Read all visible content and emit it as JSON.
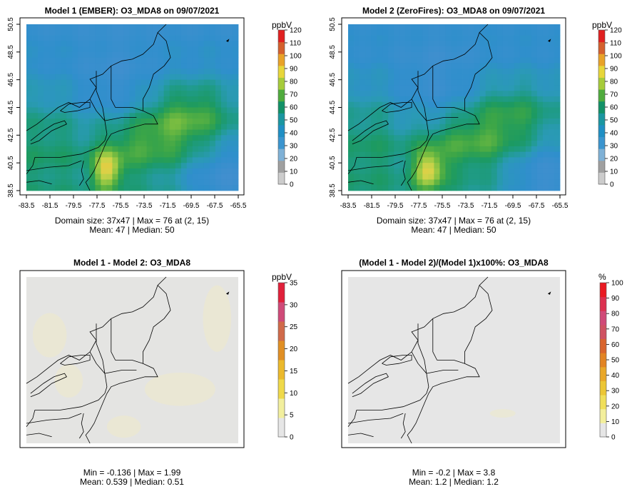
{
  "colors": {
    "land_line": "#000000",
    "frame": "#000000",
    "diff_bg": "#e4e4e4",
    "pct_bg": "#e6e6e6",
    "diff_tint": "#ece9d6"
  },
  "panels": [
    {
      "title": "Model 1 (EMBER): O3_MDA8 on 09/07/2021",
      "unit": "ppbV",
      "x_ticks": [
        "-83.5",
        "-81.5",
        "-79.5",
        "-77.5",
        "-75.5",
        "-73.5",
        "-71.5",
        "-69.5",
        "-67.5",
        "-65.5"
      ],
      "y_ticks": [
        "38.5",
        "40.5",
        "42.5",
        "44.5",
        "46.5",
        "48.5",
        "50.5"
      ],
      "stats_line1": "Domain size: 37x47 | Max = 76 at (2, 15)",
      "stats_line2": "Mean: 47 |  Median: 50"
    },
    {
      "title": "Model 2 (ZeroFires): O3_MDA8 on 09/07/2021",
      "unit": "ppbV",
      "x_ticks": [
        "-83.5",
        "-81.5",
        "-79.5",
        "-77.5",
        "-75.5",
        "-73.5",
        "-71.5",
        "-69.5",
        "-67.5",
        "-65.5"
      ],
      "y_ticks": [
        "38.5",
        "40.5",
        "42.5",
        "44.5",
        "46.5",
        "48.5",
        "50.5"
      ],
      "stats_line1": "Domain size: 37x47 | Max = 76 at (2, 15)",
      "stats_line2": "Mean: 47 |  Median: 50"
    },
    {
      "title": "Model 1 - Model 2: O3_MDA8",
      "unit": "ppbV",
      "stats_line1": "Min = -0.136 | Max = 1.99",
      "stats_line2": "Mean: 0.539 |  Median: 0.51"
    },
    {
      "title": "(Model 1 - Model 2)/(Model 1)x100%: O3_MDA8",
      "unit": "%",
      "stats_line1": "Min = -0.2 | Max = 3.8",
      "stats_line2": "Mean: 1.2 |  Median: 1.2"
    }
  ],
  "colorbars": [
    {
      "name": "ozone-colorbar-1",
      "labels": [
        "120",
        "110",
        "100",
        "90",
        "80",
        "70",
        "60",
        "50",
        "40",
        "30",
        "20",
        "10",
        "0"
      ],
      "colors": [
        "#cccccc",
        "#a0a0a0",
        "#7fb1d6",
        "#3b95cf",
        "#1f8fc4",
        "#1a96a0",
        "#129167",
        "#4fab3d",
        "#a6cb3a",
        "#e7d63a",
        "#e8a228",
        "#d4602d",
        "#e02020"
      ]
    },
    {
      "name": "ozone-colorbar-2",
      "labels": [
        "120",
        "110",
        "100",
        "90",
        "80",
        "70",
        "60",
        "50",
        "40",
        "30",
        "20",
        "10",
        "0"
      ],
      "colors": [
        "#cccccc",
        "#a0a0a0",
        "#7fb1d6",
        "#3b95cf",
        "#1f8fc4",
        "#1a96a0",
        "#129167",
        "#4fab3d",
        "#a6cb3a",
        "#e7d63a",
        "#e8a228",
        "#d4602d",
        "#e02020"
      ]
    },
    {
      "name": "diff-colorbar",
      "labels": [
        "35",
        "30",
        "25",
        "20",
        "15",
        "10",
        "5",
        "0"
      ],
      "colors": [
        "#e6e6e6",
        "#f2ef9e",
        "#efd94a",
        "#ebb92c",
        "#e08f24",
        "#d06a4a",
        "#cf4a78",
        "#e0203a"
      ]
    },
    {
      "name": "pct-colorbar",
      "labels": [
        "100",
        "90",
        "80",
        "70",
        "60",
        "50",
        "40",
        "30",
        "20",
        "10",
        "0"
      ],
      "colors": [
        "#e6e6e6",
        "#f3ef9c",
        "#f0df5a",
        "#ecc635",
        "#e9a82a",
        "#e28424",
        "#d9652e",
        "#cf5262",
        "#d04a78",
        "#dc3150",
        "#ea1a22"
      ]
    }
  ],
  "chart_data": [
    {
      "type": "heatmap",
      "title": "Model 1 (EMBER): O3_MDA8 on 09/07/2021",
      "xlabel": "",
      "ylabel": "",
      "x_range": [
        -83.5,
        -65.5
      ],
      "y_range": [
        38.5,
        50.5
      ],
      "color_range": [
        0,
        120
      ],
      "unit": "ppbV",
      "grid_size": "37x47",
      "max": 76,
      "max_at": "(2, 15)",
      "mean": 47,
      "median": 50
    },
    {
      "type": "heatmap",
      "title": "Model 2 (ZeroFires): O3_MDA8 on 09/07/2021",
      "xlabel": "",
      "ylabel": "",
      "x_range": [
        -83.5,
        -65.5
      ],
      "y_range": [
        38.5,
        50.5
      ],
      "color_range": [
        0,
        120
      ],
      "unit": "ppbV",
      "grid_size": "37x47",
      "max": 76,
      "max_at": "(2, 15)",
      "mean": 47,
      "median": 50
    },
    {
      "type": "heatmap",
      "title": "Model 1 - Model 2: O3_MDA8",
      "color_range": [
        0,
        35
      ],
      "unit": "ppbV",
      "min": -0.136,
      "max": 1.99,
      "mean": 0.539,
      "median": 0.51
    },
    {
      "type": "heatmap",
      "title": "(Model 1 - Model 2)/(Model 1)x100%: O3_MDA8",
      "color_range": [
        0,
        100
      ],
      "unit": "%",
      "min": -0.2,
      "max": 3.8,
      "mean": 1.2,
      "median": 1.2
    }
  ]
}
